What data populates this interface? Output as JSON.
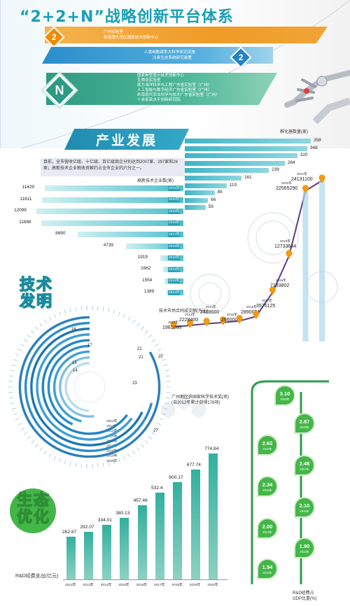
{
  "header": {
    "title": "“2+2+N”战略创新平台体系",
    "band1": {
      "badge": "2",
      "lines": [
        "广州实验室",
        "粤港澳大湾区国家技术创新中心"
      ]
    },
    "band2": {
      "badge": "2",
      "lines": [
        "人类细胞谱系大科学研究设施",
        "冷泉生态系统研究装置"
      ]
    },
    "band3": {
      "badge": "N",
      "lines": [
        "国家新型显示技术创新中心",
        "生物岛实验室",
        "南方海洋科学与工程广东省实验室（广州）",
        "人工智能与数字经济广东省实验室（广州）",
        "岭南现代农业科学与技术广东省实验室（广州）",
        "十余家高水平创新研究院"
      ]
    }
  },
  "industry": {
    "title": "产业发展",
    "description": "目前，全市营收亿级、十亿级、百亿级商企分别达到2007家、297家和26家；高新技术企业税收贡献约占全市企业的六分之一。",
    "hightech_caption": "高新技术企业数(家)",
    "incubator_caption": "孵化器数量(家)",
    "hightech_chart": {
      "type": "bar",
      "categories": [
        "2021年",
        "2020年",
        "2019年",
        "2018年",
        "2017年",
        "2016年",
        "2015年",
        "2014年",
        "2013年",
        "2012年"
      ],
      "values": [
        11429,
        11611,
        12099,
        11688,
        8690,
        4739,
        1919,
        1662,
        1554,
        1389
      ],
      "labels": [
        "11429",
        "11611",
        "12099",
        "11688",
        "8690",
        "4739",
        "1919",
        "1662",
        "1554",
        "1389"
      ]
    },
    "incubator_chart": {
      "type": "bar",
      "values": [
        358,
        348,
        320,
        284,
        239,
        161,
        119,
        85,
        66,
        59
      ],
      "labels": [
        "358",
        "348",
        "320",
        "284",
        "239",
        "161",
        "119",
        "85",
        "66",
        "59"
      ]
    }
  },
  "tech": {
    "title_line1": "技术",
    "title_line2": "发明",
    "contract_caption": "技术市场合同成交额(万元)",
    "contract_chart": {
      "type": "line",
      "x": [
        "2012年",
        "2013年",
        "2014年",
        "2015年",
        "2016年",
        "2017年",
        "2018年",
        "2019年",
        "2020年",
        "2021年"
      ],
      "values": [
        1981000,
        2228400,
        2468600,
        2660000,
        2890081,
        3575125,
        7193802,
        12733644,
        22565290,
        24131100
      ],
      "labels": [
        "1981000",
        "2228400",
        "2468600",
        "2660000",
        "2890081",
        "3575125",
        "7193802",
        "12733644",
        "22565290",
        "24131100"
      ]
    },
    "award_caption_line1": "广州地区获国家科学技术奖(项)",
    "award_caption_line2": "(自2012年累计获得176项)",
    "award_chart": {
      "type": "bar",
      "categories": [
        "2012年",
        "2013年",
        "2014年",
        "2015年",
        "2016年",
        "2017年",
        "2018年",
        "2019年",
        "2020年"
      ],
      "values": [
        16,
        17,
        15,
        14,
        21,
        21,
        22,
        23,
        27
      ],
      "labels": [
        "16",
        "17",
        "15",
        "14",
        "21",
        "21",
        "22",
        "23",
        "27"
      ]
    }
  },
  "ecology": {
    "title_line1": "生态",
    "title_line2": "优化",
    "rd_caption": "R&D经费支出(亿元)",
    "rd_chart": {
      "type": "bar",
      "categories": [
        "2012年",
        "2013年",
        "2014年",
        "2015年",
        "2016年",
        "2017年",
        "2018年",
        "2019年",
        "2020年"
      ],
      "values": [
        262.87,
        292.07,
        334.01,
        380.13,
        457.46,
        532.4,
        600.17,
        677.74,
        774.84
      ],
      "labels": [
        "262.87",
        "292.07",
        "334.01",
        "380.13",
        "457.46",
        "532.4",
        "600.17",
        "677.74",
        "774.84"
      ]
    },
    "gdp_caption_line1": "R&D经费占",
    "gdp_caption_line2": "GDP比重(%)",
    "gdp_chart": {
      "type": "line",
      "x": [
        "2012年",
        "2013年",
        "2014年",
        "2015年",
        "2016年",
        "2017年",
        "2018年",
        "2019年",
        "2020年"
      ],
      "values": [
        1.94,
        1.9,
        2.0,
        2.1,
        2.34,
        2.48,
        2.63,
        2.87,
        3.1
      ],
      "labels": [
        "1.94",
        "1.90",
        "2.00",
        "2.10",
        "2.34",
        "2.48",
        "2.63",
        "2.87",
        "3.10"
      ]
    }
  },
  "colors": {
    "teal": "#2ba0b4",
    "orange": "#f08b00",
    "blue": "#2383c4",
    "green": "#43b648",
    "purple": "#5b3d8c"
  }
}
